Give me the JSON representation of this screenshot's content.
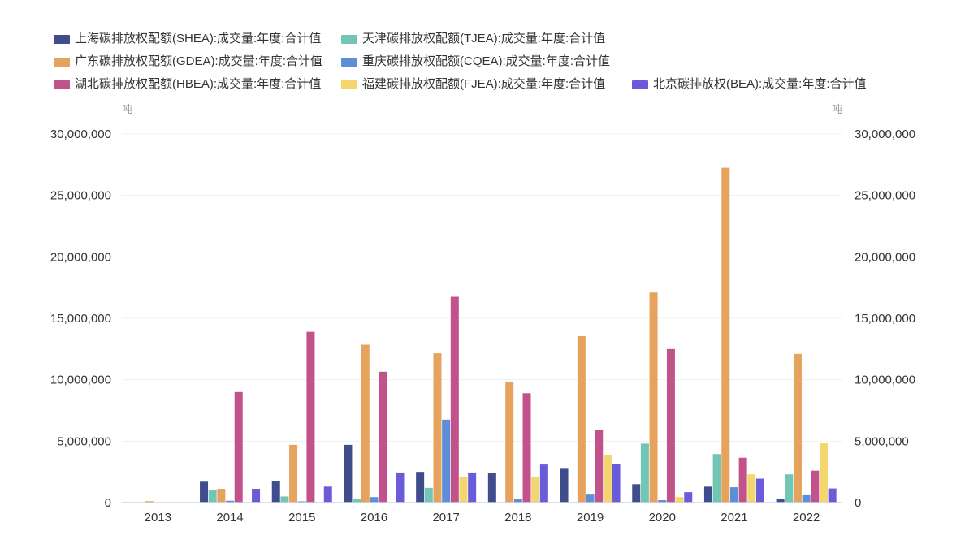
{
  "chart_data": {
    "type": "bar",
    "y_unit": "吨",
    "dual_y_axis": true,
    "grid": true,
    "legend": "top-left",
    "categories": [
      "2013",
      "2014",
      "2015",
      "2016",
      "2017",
      "2018",
      "2019",
      "2020",
      "2021",
      "2022"
    ],
    "ylim": [
      0,
      30000000
    ],
    "y_ticks": [
      0,
      5000000,
      10000000,
      15000000,
      20000000,
      25000000,
      30000000
    ],
    "y_tick_labels": [
      "0",
      "5,000,000",
      "10,000,000",
      "15,000,000",
      "20,000,000",
      "25,000,000",
      "30,000,000"
    ],
    "series": [
      {
        "name": "上海碳排放权配额(SHEA):成交量:年度:合计值",
        "color": "#3f4d8c",
        "values": [
          0,
          1700000,
          1780000,
          4700000,
          2500000,
          2400000,
          2750000,
          1500000,
          1300000,
          300000
        ]
      },
      {
        "name": "天津碳排放权配额(TJEA):成交量:年度:合计值",
        "color": "#73c6b6",
        "values": [
          0,
          1050000,
          500000,
          330000,
          1200000,
          0,
          0,
          4800000,
          3950000,
          2300000
        ]
      },
      {
        "name": "广东碳排放权配额(GDEA):成交量:年度:合计值",
        "color": "#e6a35e",
        "values": [
          120000,
          1120000,
          4700000,
          12850000,
          12150000,
          9850000,
          13550000,
          17100000,
          27250000,
          12100000
        ]
      },
      {
        "name": "重庆碳排放权配额(CQEA):成交量:年度:合计值",
        "color": "#5d8fd8",
        "values": [
          0,
          150000,
          100000,
          450000,
          6750000,
          300000,
          650000,
          200000,
          1250000,
          600000
        ]
      },
      {
        "name": "湖北碳排放权配额(HBEA):成交量:年度:合计值",
        "color": "#c2528b",
        "values": [
          0,
          9000000,
          13900000,
          10650000,
          16750000,
          8900000,
          5900000,
          12500000,
          3650000,
          2600000
        ]
      },
      {
        "name": "福建碳排放权配额(FJEA):成交量:年度:合计值",
        "color": "#f3d66e",
        "values": [
          0,
          0,
          0,
          0,
          2100000,
          2100000,
          3900000,
          450000,
          2300000,
          4850000
        ]
      },
      {
        "name": "北京碳排放权(BEA):成交量:年度:合计值",
        "color": "#6a5bd8",
        "values": [
          0,
          1120000,
          1300000,
          2450000,
          2450000,
          3100000,
          3150000,
          850000,
          1950000,
          1150000
        ]
      }
    ]
  }
}
